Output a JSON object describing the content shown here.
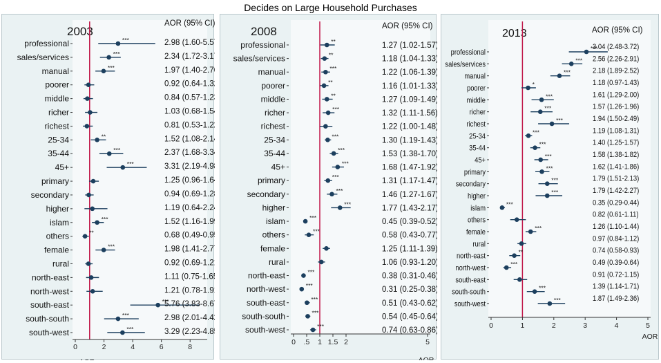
{
  "figure_title": "Decides on Large Household Purchases",
  "colors": {
    "point": "#1c3f5e",
    "ref_line": "#c0194a",
    "panel_bg": "#eaf2f3"
  },
  "chart_data": [
    {
      "type": "forest",
      "title": "2003",
      "ci_header": "AOR (95% CI)",
      "xlabel": "AOR",
      "xlim": [
        0,
        9
      ],
      "xticks": [
        0,
        2,
        4,
        6,
        8
      ],
      "ref_value": 1,
      "categories": [
        "professional",
        "sales/services",
        "manual",
        "poorer",
        "middle",
        "richer",
        "richest",
        "25-34",
        "35-44",
        "45+",
        "primary",
        "secondary",
        "higher",
        "islam",
        "others",
        "female",
        "rural",
        "north-east",
        "north-west",
        "south-east",
        "south-south",
        "south-west"
      ],
      "values": [
        2.98,
        2.34,
        1.97,
        0.92,
        0.84,
        1.03,
        0.81,
        1.52,
        2.37,
        3.31,
        1.25,
        0.94,
        1.19,
        1.52,
        0.68,
        1.98,
        0.92,
        1.11,
        1.21,
        5.76,
        2.98,
        3.29
      ],
      "lower": [
        1.6,
        1.72,
        1.4,
        0.64,
        0.57,
        0.68,
        0.53,
        1.08,
        1.68,
        2.19,
        0.96,
        0.69,
        0.64,
        1.16,
        0.49,
        1.41,
        0.69,
        0.75,
        0.78,
        3.83,
        2.01,
        2.23
      ],
      "upper": [
        5.57,
        3.17,
        2.76,
        1.32,
        1.23,
        1.54,
        1.22,
        2.14,
        3.34,
        4.98,
        1.64,
        1.28,
        2.24,
        1.99,
        0.95,
        2.77,
        1.21,
        1.65,
        1.91,
        8.67,
        4.42,
        4.85
      ],
      "stars": [
        "***",
        "***",
        "***",
        "",
        "",
        "",
        "",
        "**",
        "***",
        "***",
        "",
        "",
        "",
        "***",
        "**",
        "***",
        "",
        "",
        "",
        "***",
        "***",
        "***"
      ],
      "ci_labels": [
        "2.98 (1.60-5.57)",
        "2.34 (1.72-3.17)",
        "1.97 (1.40-2.76)",
        "0.92 (0.64-1.32)",
        "0.84 (0.57-1.23)",
        "1.03 (0.68-1.54)",
        "0.81 (0.53-1.22)",
        "1.52 (1.08-2.14)",
        "2.37 (1.68-3.34)",
        "3.31 (2.19-4.98)",
        "1.25 (0.96-1.64)",
        "0.94 (0.69-1.28)",
        "1.19 (0.64-2.24)",
        "1.52 (1.16-1.99)",
        "0.68 (0.49-0.95)",
        "1.98 (1.41-2.77)",
        "0.92 (0.69-1.21)",
        "1.11 (0.75-1.65)",
        "1.21 (0.78-1.91)",
        "5.76 (3.83-8.67)",
        "2.98 (2.01-4.42)",
        "3.29 (2.23-4.85)"
      ]
    },
    {
      "type": "forest",
      "title": "2008",
      "ci_header": "AOR (95% CI)",
      "xlabel": "AOR",
      "xlim": [
        0,
        5.2
      ],
      "xticks": [
        0,
        0.5,
        1,
        1.5,
        2,
        5
      ],
      "xtick_labels": [
        "0",
        ".5",
        "1",
        "1.5",
        "2",
        "5"
      ],
      "ref_value": 1,
      "categories": [
        "professional",
        "sales/services",
        "manual",
        "poorer",
        "middle",
        "richer",
        "richest",
        "25-34",
        "35-44",
        "45+",
        "primary",
        "secondary",
        "higher",
        "islam",
        "others",
        "female",
        "rural",
        "north-east",
        "north-west",
        "south-east",
        "south-south",
        "south-west"
      ],
      "values": [
        1.27,
        1.18,
        1.22,
        1.16,
        1.27,
        1.32,
        1.22,
        1.3,
        1.53,
        1.68,
        1.31,
        1.46,
        1.77,
        0.45,
        0.58,
        1.25,
        1.06,
        0.38,
        0.31,
        0.51,
        0.54,
        0.74
      ],
      "lower": [
        1.02,
        1.04,
        1.06,
        1.01,
        1.09,
        1.11,
        1.0,
        1.19,
        1.38,
        1.47,
        1.17,
        1.27,
        1.43,
        0.39,
        0.43,
        1.11,
        0.93,
        0.31,
        0.25,
        0.43,
        0.45,
        0.63
      ],
      "upper": [
        1.57,
        1.33,
        1.39,
        1.33,
        1.49,
        1.56,
        1.48,
        1.43,
        1.7,
        1.92,
        1.47,
        1.67,
        2.17,
        0.52,
        0.77,
        1.39,
        1.2,
        0.46,
        0.38,
        0.62,
        0.64,
        0.86
      ],
      "stars": [
        "**",
        "**",
        "***",
        "**",
        "**",
        "***",
        "",
        "***",
        "***",
        "***",
        "***",
        "***",
        "***",
        "***",
        "***",
        "",
        "",
        "***",
        "***",
        "***",
        "***",
        "***"
      ],
      "ci_labels": [
        "1.27 (1.02-1.57)",
        "1.18 (1.04-1.33)",
        "1.22 (1.06-1.39)",
        "1.16 (1.01-1.33)",
        "1.27 (1.09-1.49)",
        "1.32 (1.11-1.56)",
        "1.22 (1.00-1.48)",
        "1.30 (1.19-1.43)",
        "1.53 (1.38-1.70)",
        "1.68 (1.47-1.92)",
        "1.31 (1.17-1.47)",
        "1.46 (1.27-1.67)",
        "1.77 (1.43-2.17)",
        "0.45 (0.39-0.52)",
        "0.58 (0.43-0.77)",
        "1.25 (1.11-1.39)",
        "1.06 (0.93-1.20)",
        "0.38 (0.31-0.46)",
        "0.31 (0.25-0.38)",
        "0.51 (0.43-0.62)",
        "0.54 (0.45-0.64)",
        "0.74 (0.63-0.86)"
      ]
    },
    {
      "type": "forest",
      "title": "2013",
      "ci_header": "AOR (95% CI)",
      "xlabel": "AOR",
      "xlim": [
        0,
        5
      ],
      "xticks": [
        0,
        1,
        2,
        3,
        4,
        5
      ],
      "ref_value": 1,
      "categories": [
        "professional",
        "sales/services",
        "manual",
        "poorer",
        "middle",
        "richer",
        "richest",
        "25-34",
        "35-44",
        "45+",
        "primary",
        "secondary",
        "higher",
        "islam",
        "others",
        "female",
        "rural",
        "north-east",
        "north-west",
        "south-east",
        "south-south",
        "south-west"
      ],
      "values": [
        3.04,
        2.56,
        2.18,
        1.18,
        1.61,
        1.57,
        1.94,
        1.19,
        1.4,
        1.58,
        1.62,
        1.79,
        1.79,
        0.35,
        0.82,
        1.26,
        0.97,
        0.74,
        0.49,
        0.91,
        1.39,
        1.87
      ],
      "lower": [
        2.48,
        2.26,
        1.89,
        0.97,
        1.29,
        1.26,
        1.5,
        1.08,
        1.25,
        1.38,
        1.41,
        1.51,
        1.42,
        0.29,
        0.61,
        1.1,
        0.84,
        0.58,
        0.39,
        0.72,
        1.14,
        1.49
      ],
      "upper": [
        3.72,
        2.91,
        2.52,
        1.43,
        2.0,
        1.96,
        2.49,
        1.31,
        1.57,
        1.82,
        1.86,
        2.13,
        2.27,
        0.44,
        1.11,
        1.44,
        1.12,
        0.93,
        0.64,
        1.15,
        1.71,
        2.36
      ],
      "stars": [
        "***",
        "***",
        "***",
        "*",
        "***",
        "***",
        "***",
        "***",
        "***",
        "***",
        "***",
        "***",
        "***",
        "***",
        "",
        "***",
        "",
        "**",
        "***",
        "",
        "***",
        "***"
      ],
      "ci_labels": [
        "3.04 (2.48-3.72)",
        "2.56 (2.26-2.91)",
        "2.18 (1.89-2.52)",
        "1.18 (0.97-1.43)",
        "1.61 (1.29-2.00)",
        "1.57 (1.26-1.96)",
        "1.94 (1.50-2.49)",
        "1.19 (1.08-1.31)",
        "1.40 (1.25-1.57)",
        "1.58 (1.38-1.82)",
        "1.62 (1.41-1.86)",
        "1.79 (1.51-2.13)",
        "1.79 (1.42-2.27)",
        "0.35 (0.29-0.44)",
        "0.82 (0.61-1.11)",
        "1.26 (1.10-1.44)",
        "0.97 (0.84-1.12)",
        "0.74 (0.58-0.93)",
        "0.49 (0.39-0.64)",
        "0.91 (0.72-1.15)",
        "1.39 (1.14-1.71)",
        "1.87 (1.49-2.36)"
      ]
    }
  ]
}
